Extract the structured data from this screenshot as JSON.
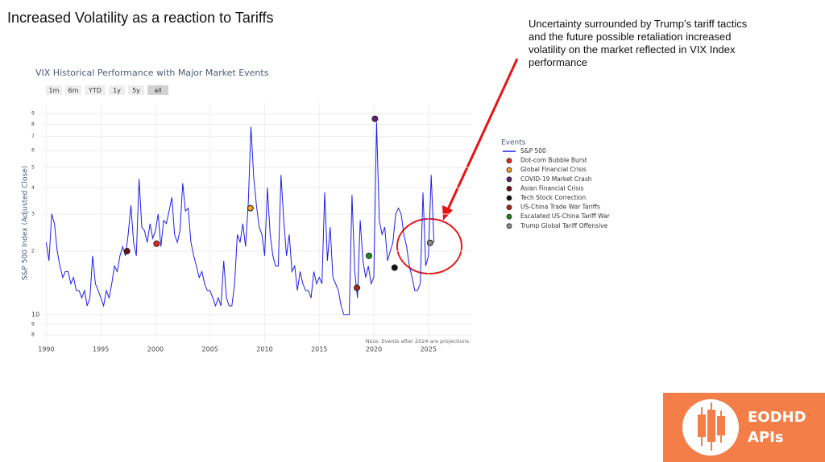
{
  "slide": {
    "title": "Increased Volatility as a reaction to Tariffs",
    "annotation": [
      "Uncertainty surrounded by Trump’s tariff tactics",
      "and the future possible retaliation increased",
      "volatility on the market reflected in VIX Index",
      "performance"
    ],
    "logo": [
      "EODHD",
      "APIs"
    ]
  },
  "chart_data": {
    "type": "line",
    "title": "VIX Historical Performance with Major Market Events",
    "buttons": [
      "1m",
      "6m",
      "YTD",
      "1y",
      "5y",
      "all"
    ],
    "ylabel": "S&P 500 Index (Adjusted Close)",
    "note": "Note: Events after 2024 are projections",
    "legend_title": "Events",
    "log_y": true,
    "grid": true,
    "xlim": [
      1989.6,
      2029
    ],
    "xticks": [
      1990,
      1995,
      2000,
      2005,
      2010,
      2015,
      2020,
      2025
    ],
    "ylim": [
      7.4,
      101
    ],
    "yticks": [
      8,
      9,
      {
        "value": 10,
        "label": "10"
      },
      {
        "value": 20,
        "label": "2"
      },
      {
        "value": 30,
        "label": "3"
      },
      {
        "value": 40,
        "label": "4"
      },
      {
        "value": 50,
        "label": "5"
      },
      {
        "value": 60,
        "label": "6"
      },
      {
        "value": 70,
        "label": "7"
      },
      {
        "value": 80,
        "label": "8"
      },
      {
        "value": 90,
        "label": "9"
      }
    ],
    "series": [
      {
        "name": "S&P 500",
        "color": "#1f1fe8",
        "x": [
          1990,
          1990.25,
          1990.5,
          1990.75,
          1991,
          1991.25,
          1991.5,
          1991.75,
          1992,
          1992.25,
          1992.5,
          1992.75,
          1993,
          1993.25,
          1993.5,
          1993.75,
          1994,
          1994.25,
          1994.5,
          1994.75,
          1995,
          1995.25,
          1995.5,
          1995.75,
          1996,
          1996.25,
          1996.5,
          1996.75,
          1997,
          1997.25,
          1997.5,
          1997.75,
          1998,
          1998.25,
          1998.5,
          1998.75,
          1999,
          1999.25,
          1999.5,
          1999.75,
          2000,
          2000.25,
          2000.5,
          2000.75,
          2001,
          2001.25,
          2001.5,
          2001.75,
          2002,
          2002.25,
          2002.5,
          2002.75,
          2003,
          2003.25,
          2003.5,
          2003.75,
          2004,
          2004.25,
          2004.5,
          2004.75,
          2005,
          2005.25,
          2005.5,
          2005.75,
          2006,
          2006.25,
          2006.5,
          2006.75,
          2007,
          2007.25,
          2007.5,
          2007.75,
          2008,
          2008.25,
          2008.5,
          2008.75,
          2009,
          2009.25,
          2009.5,
          2009.75,
          2010,
          2010.25,
          2010.5,
          2010.75,
          2011,
          2011.25,
          2011.5,
          2011.75,
          2012,
          2012.25,
          2012.5,
          2012.75,
          2013,
          2013.25,
          2013.5,
          2013.75,
          2014,
          2014.25,
          2014.5,
          2014.75,
          2015,
          2015.25,
          2015.5,
          2015.75,
          2016,
          2016.25,
          2016.5,
          2016.75,
          2017,
          2017.25,
          2017.5,
          2017.75,
          2018,
          2018.25,
          2018.5,
          2018.75,
          2019,
          2019.25,
          2019.5,
          2019.75,
          2020,
          2020.25,
          2020.5,
          2020.75,
          2021,
          2021.25,
          2021.5,
          2021.75,
          2022,
          2022.25,
          2022.5,
          2022.75,
          2023,
          2023.25,
          2023.5,
          2023.75,
          2024,
          2024.25,
          2024.5,
          2024.75,
          2025,
          2025.25,
          2025.5
        ],
        "values": [
          22,
          18,
          30,
          27,
          20,
          17,
          15,
          16,
          16,
          14,
          15,
          13,
          13,
          12,
          13,
          11,
          12,
          19,
          14,
          13,
          12,
          11,
          13,
          12,
          14,
          17,
          16,
          19,
          21,
          19,
          24,
          33,
          22,
          19,
          44,
          26,
          25,
          22,
          27,
          23,
          25,
          30,
          21,
          28,
          27,
          31,
          36,
          24,
          22,
          25,
          42,
          31,
          32,
          22,
          19,
          17,
          15,
          16,
          14,
          13,
          13,
          12,
          11,
          12,
          11,
          18,
          12,
          11,
          11,
          14,
          24,
          22,
          27,
          21,
          34,
          78,
          45,
          33,
          26,
          24,
          19,
          40,
          24,
          19,
          17,
          17,
          46,
          28,
          19,
          24,
          16,
          17,
          13,
          16,
          14,
          13,
          13,
          12,
          16,
          14,
          15,
          14,
          38,
          18,
          26,
          15,
          14,
          13,
          11,
          10,
          10,
          10,
          37,
          16,
          12,
          28,
          18,
          15,
          17,
          14,
          15,
          82,
          28,
          24,
          26,
          18,
          20,
          22,
          30,
          32,
          30,
          24,
          21,
          17,
          15,
          13,
          13,
          14,
          38,
          17,
          19,
          46,
          22
        ]
      }
    ],
    "events": [
      {
        "name": "Dot-com Bubble Burst",
        "color": "#e8261c",
        "x": 2000.1,
        "value": 21.7
      },
      {
        "name": "Global Financial Crisis",
        "color": "#f5a21b",
        "x": 2008.7,
        "value": 32
      },
      {
        "name": "COVID-19 Market Crash",
        "color": "#6b1a7a",
        "x": 2020.1,
        "value": 85
      },
      {
        "name": "Asian Financial Crisis",
        "color": "#6e0f12",
        "x": 1997.4,
        "value": 20
      },
      {
        "name": "Tech Stock Correction",
        "color": "#111111",
        "x": 2021.9,
        "value": 16.7
      },
      {
        "name": "US-China Trade War Tariffs",
        "color": "#a8251d",
        "x": 2018.45,
        "value": 13.4
      },
      {
        "name": "Escalated US-China Tariff War",
        "color": "#1e8a1e",
        "x": 2019.55,
        "value": 19
      },
      {
        "name": "Trump Global Tariff Offensive",
        "color": "#888888",
        "x": 2025.15,
        "value": 21.9
      }
    ]
  }
}
